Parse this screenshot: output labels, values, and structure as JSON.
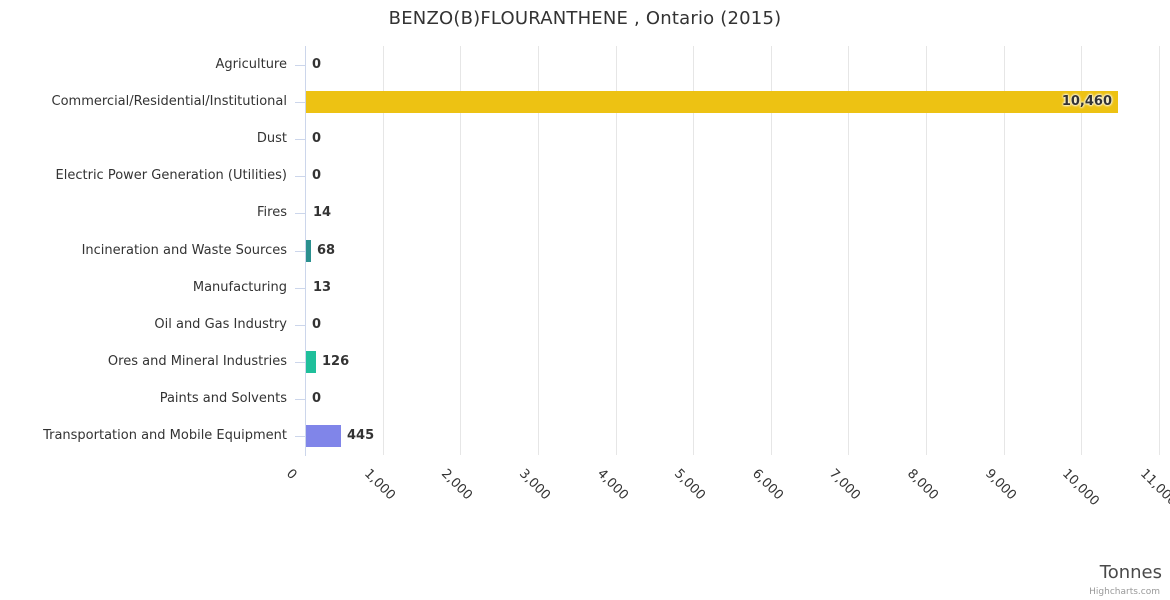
{
  "title": "BENZO(B)FLOURANTHENE , Ontario (2015)",
  "axis_title": "Tonnes",
  "credit": "Highcharts.com",
  "colors": {
    "axis_line": "#ccd6eb",
    "gridline": "#e6e6e6",
    "text": "#333333",
    "axis_title_text": "#4a4a4a",
    "credit_text": "#999999"
  },
  "chart_data": {
    "type": "bar",
    "orientation": "horizontal",
    "title": "BENZO(B)FLOURANTHENE , Ontario (2015)",
    "xlabel": "Tonnes",
    "ylabel": "",
    "grid": true,
    "xlim": [
      0,
      11000
    ],
    "categories": [
      "Agriculture",
      "Commercial/Residential/Institutional",
      "Dust",
      "Electric Power Generation (Utilities)",
      "Fires",
      "Incineration and Waste Sources",
      "Manufacturing",
      "Oil and Gas Industry",
      "Ores and Mineral Industries",
      "Paints and Solvents",
      "Transportation and Mobile Equipment"
    ],
    "values": [
      0,
      10460,
      0,
      0,
      14,
      68,
      13,
      0,
      126,
      0,
      445
    ],
    "value_labels": [
      "0",
      "10,460",
      "0",
      "0",
      "14",
      "68",
      "13",
      "0",
      "126",
      "0",
      "445"
    ],
    "bar_colors": [
      null,
      "#edc213",
      null,
      null,
      "#edc213",
      "#2b908f",
      "#2b908f",
      null,
      "#1fbf9b",
      null,
      "#8085e9"
    ],
    "x_ticks": [
      "0",
      "1,000",
      "2,000",
      "3,000",
      "4,000",
      "5,000",
      "6,000",
      "7,000",
      "8,000",
      "9,000",
      "10,000",
      "11,000"
    ],
    "x_tick_values": [
      0,
      1000,
      2000,
      3000,
      4000,
      5000,
      6000,
      7000,
      8000,
      9000,
      10000,
      11000
    ],
    "legend": "off"
  }
}
